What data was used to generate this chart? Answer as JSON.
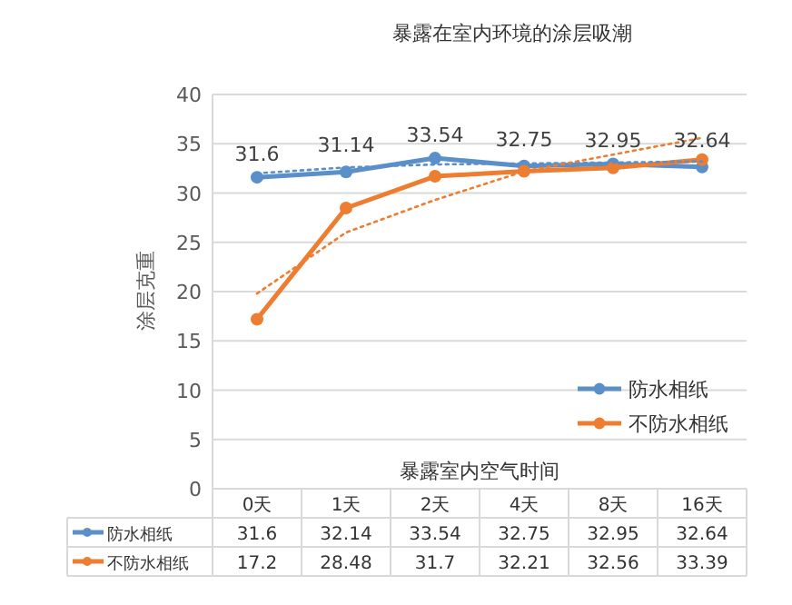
{
  "chart_data": {
    "type": "line",
    "title": "暴露在室内环境的涂层吸潮",
    "xlabel": "暴露室内空气时间",
    "ylabel": "涂层克重",
    "categories": [
      "0天",
      "1天",
      "2天",
      "4天",
      "8天",
      "16天"
    ],
    "ylim": [
      0,
      40
    ],
    "yticks": [
      0,
      5,
      10,
      15,
      20,
      25,
      30,
      35,
      40
    ],
    "grid": "y",
    "legend": "right",
    "marker": "circle",
    "line_style": "solid",
    "annotations": [
      {
        "text": "31.6",
        "x": "0天",
        "y": 31.6
      },
      {
        "text": "31.14",
        "x": "1天",
        "y": 32.14
      },
      {
        "text": "33.54",
        "x": "2天",
        "y": 33.54
      },
      {
        "text": "32.75",
        "x": "4天",
        "y": 32.75
      },
      {
        "text": "32.95",
        "x": "8天",
        "y": 32.95
      },
      {
        "text": "32.64",
        "x": "16天",
        "y": 32.64
      }
    ],
    "series": [
      {
        "name": "防水相纸",
        "color": "#5b8fc9",
        "values": [
          31.6,
          32.14,
          33.54,
          32.75,
          32.95,
          32.64
        ],
        "value_labels": [
          "31.6",
          "32.14",
          "33.54",
          "32.75",
          "32.95",
          "32.64"
        ]
      },
      {
        "name": "不防水相纸",
        "color": "#ed7d31",
        "values": [
          17.2,
          28.48,
          31.7,
          32.21,
          32.56,
          33.39
        ],
        "value_labels": [
          "17.2",
          "28.48",
          "31.7",
          "32.21",
          "32.56",
          "33.39"
        ]
      },
      {
        "type": "line",
        "color": "#5b8fc9",
        "line_style": "dotted",
        "marker": "none",
        "values": [
          32.0,
          32.6,
          32.9,
          33.0,
          33.1,
          33.2
        ]
      },
      {
        "type": "line",
        "color": "#ed7d31",
        "line_style": "dotted",
        "marker": "none",
        "values": [
          19.8,
          26.0,
          29.3,
          32.2,
          33.9,
          35.6
        ]
      }
    ]
  }
}
